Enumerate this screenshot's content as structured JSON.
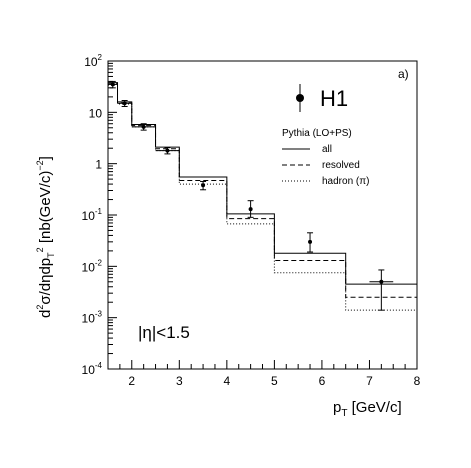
{
  "chart_data": {
    "type": "scatter",
    "panel_label": "a)",
    "xlabel_main": "p",
    "xlabel_sub": "T",
    "xlabel_unit": " [GeV/c]",
    "ylabel": "d²σ/dηdp_T² [nb(GeV/c)⁻²]",
    "ylabel_parts": {
      "d2": "d",
      "s1": "2",
      "sig": "σ/dηdp",
      "T": "T",
      "s2": "2",
      "unit": " [nb(GeV/c)",
      "exp": "−2",
      "close": "]"
    },
    "xlim": [
      1.5,
      8
    ],
    "ylim": [
      0.0001,
      100
    ],
    "yscale": "log",
    "x_ticks": [
      "2",
      "3",
      "4",
      "5",
      "6",
      "7",
      "8"
    ],
    "x_tick_values": [
      2,
      3,
      4,
      5,
      6,
      7,
      8
    ],
    "y_ticks": [
      {
        "value": 100,
        "base": "10",
        "exp": "2"
      },
      {
        "value": 10,
        "base": "10",
        "exp": ""
      },
      {
        "value": 1,
        "base": "1",
        "exp": ""
      },
      {
        "value": 0.1,
        "base": "10",
        "exp": "-1"
      },
      {
        "value": 0.01,
        "base": "10",
        "exp": "-2"
      },
      {
        "value": 0.001,
        "base": "10",
        "exp": "-3"
      },
      {
        "value": 0.0001,
        "base": "10",
        "exp": "-4"
      }
    ],
    "annotation": "|η|<1.5",
    "data_series": {
      "name": "H1",
      "points": [
        {
          "x": 1.6,
          "y": 35,
          "ylo": 30,
          "yhi": 40,
          "xlo": 1.5,
          "xhi": 1.7
        },
        {
          "x": 1.85,
          "y": 15,
          "ylo": 13,
          "yhi": 17,
          "xlo": 1.7,
          "xhi": 2.0
        },
        {
          "x": 2.25,
          "y": 5.2,
          "ylo": 4.5,
          "yhi": 6.0,
          "xlo": 2.0,
          "xhi": 2.5
        },
        {
          "x": 2.75,
          "y": 1.8,
          "ylo": 1.55,
          "yhi": 2.05,
          "xlo": 2.5,
          "xhi": 3.0
        },
        {
          "x": 3.5,
          "y": 0.38,
          "ylo": 0.31,
          "yhi": 0.45,
          "xlo": null,
          "xhi": null
        },
        {
          "x": 4.5,
          "y": 0.13,
          "ylo": 0.09,
          "yhi": 0.19,
          "xlo": null,
          "xhi": null
        },
        {
          "x": 5.75,
          "y": 0.03,
          "ylo": 0.019,
          "yhi": 0.045,
          "xlo": null,
          "xhi": null
        },
        {
          "x": 7.25,
          "y": 0.005,
          "ylo": 0.0014,
          "yhi": 0.0085,
          "xlo": 7.0,
          "xhi": 7.5
        }
      ]
    },
    "legend": {
      "title": "Pythia (LO+PS)",
      "entries": [
        {
          "label": "all",
          "style": "solid"
        },
        {
          "label": "resolved",
          "style": "dashed"
        },
        {
          "label": "hadron (π)",
          "style": "dotted"
        }
      ]
    },
    "histograms": {
      "bin_edges": [
        1.5,
        1.7,
        2.0,
        2.5,
        3.0,
        4.0,
        5.0,
        6.5,
        8.0
      ],
      "series": [
        {
          "label": "all",
          "style": "solid",
          "values": [
            38,
            16,
            5.8,
            2.1,
            0.55,
            0.105,
            0.018,
            0.0045
          ]
        },
        {
          "label": "resolved",
          "style": "dashed",
          "values": [
            36,
            15.2,
            5.5,
            1.95,
            0.47,
            0.085,
            0.013,
            0.0025
          ]
        },
        {
          "label": "hadron (π)",
          "style": "dotted",
          "values": [
            34,
            14.5,
            5.2,
            1.8,
            0.4,
            0.067,
            0.0075,
            0.0014
          ]
        }
      ]
    }
  }
}
